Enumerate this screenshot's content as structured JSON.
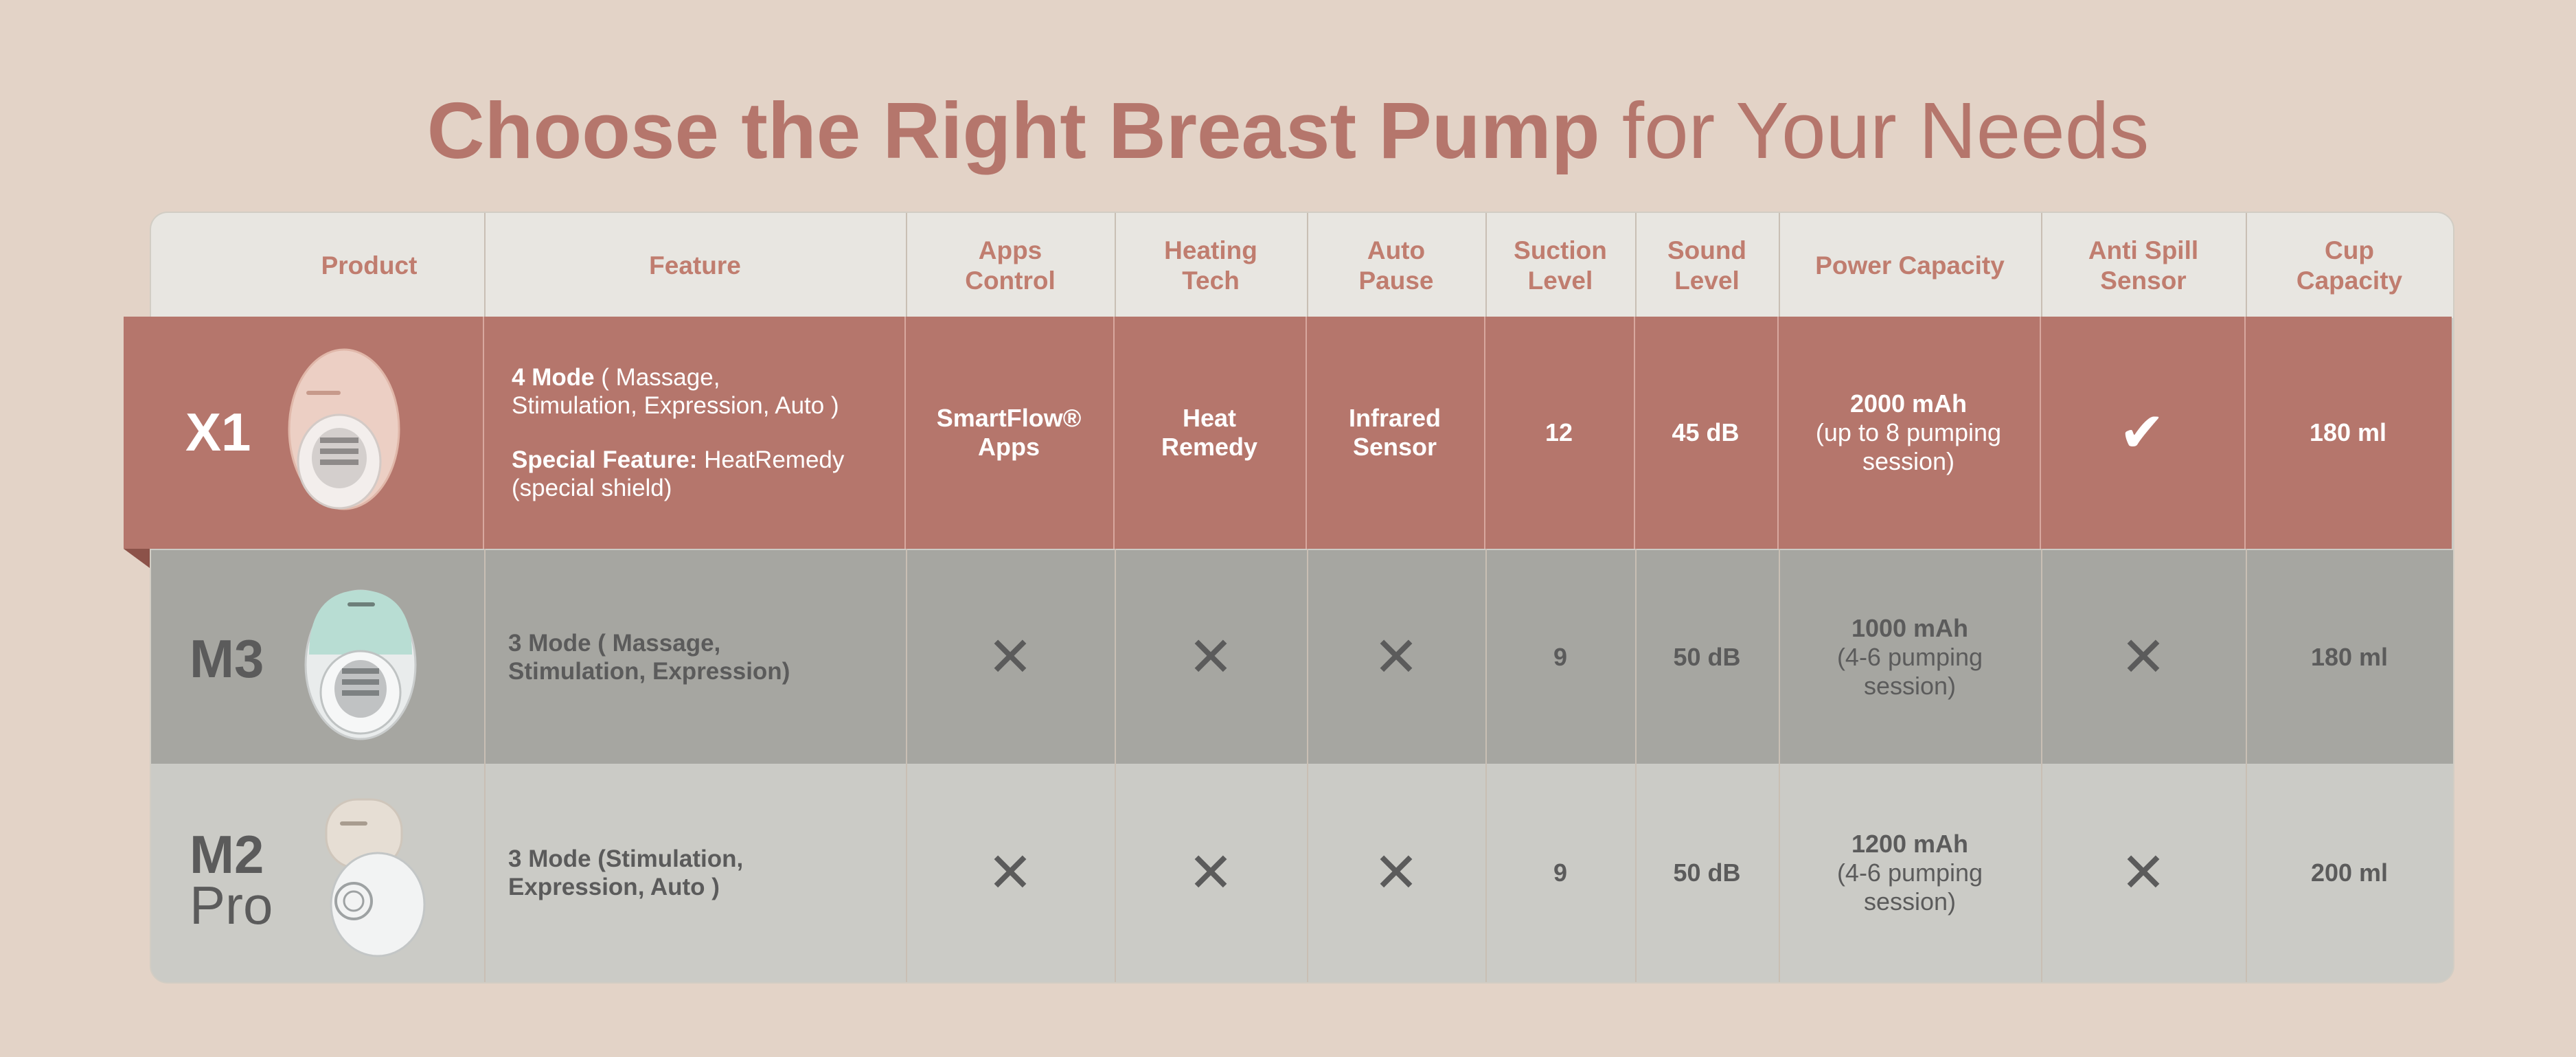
{
  "title": {
    "bold": "Choose the Right Breast Pump",
    "rest": " for Your Needs"
  },
  "columns": [
    "Product",
    "Feature",
    "Apps\nControl",
    "Heating\nTech",
    "Auto\nPause",
    "Suction\nLevel",
    "Sound\nLevel",
    "Power Capacity",
    "Anti Spill\nSensor",
    "Cup\nCapacity"
  ],
  "rows": [
    {
      "name": "X1",
      "feature_mode_bold": "4 Mode",
      "feature_mode_rest": " ( Massage,\nStimulation, Expression, Auto )",
      "special_bold": "Special Feature:",
      "special_rest": " HeatRemedy\n(special shield)",
      "apps": "SmartFlow®\nApps",
      "heating": "Heat\nRemedy",
      "auto_pause": "Infrared\nSensor",
      "suction": "12",
      "sound": "45 dB",
      "power_main": "2000 mAh",
      "power_sub": "(up to 8 pumping\nsession)",
      "anti_spill": "check-icon",
      "cup": "180 ml"
    },
    {
      "name": "M3",
      "feature": "3 Mode ( Massage,\nStimulation, Expression)",
      "apps": "cross-icon",
      "heating": "cross-icon",
      "auto_pause": "cross-icon",
      "suction": "9",
      "sound": "50 dB",
      "power_main": "1000 mAh",
      "power_sub": "(4-6 pumping\nsession)",
      "anti_spill": "cross-icon",
      "cup": "180 ml"
    },
    {
      "name_line1": "M2",
      "name_line2": "Pro",
      "feature": "3 Mode (Stimulation,\nExpression, Auto )",
      "apps": "cross-icon",
      "heating": "cross-icon",
      "auto_pause": "cross-icon",
      "suction": "9",
      "sound": "50 dB",
      "power_main": "1200 mAh",
      "power_sub": "(4-6 pumping\nsession)",
      "anti_spill": "cross-icon",
      "cup": "200 ml"
    }
  ],
  "colors": {
    "accent": "#b5766c",
    "background": "#e3d3c7",
    "row_m3": "#a6a6a1",
    "row_m2": "#cbcbc6"
  }
}
